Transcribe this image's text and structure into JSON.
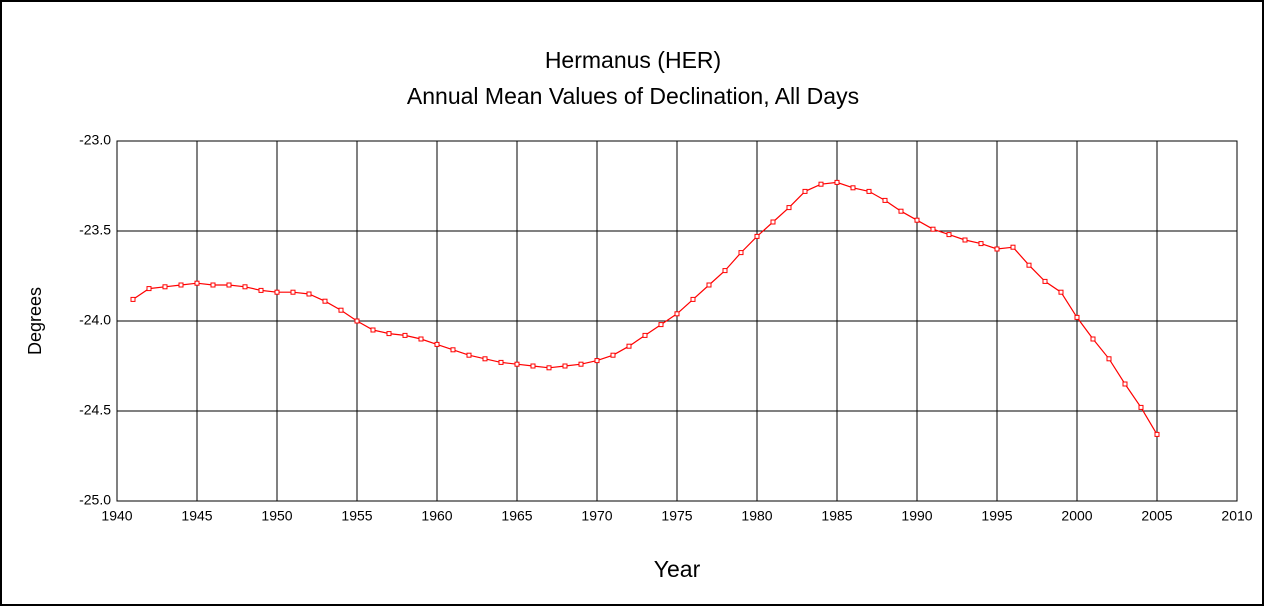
{
  "chart_data": {
    "type": "line",
    "title": "Hermanus (HER)",
    "subtitle": "Annual Mean Values of Declination, All Days",
    "x_label": "Year",
    "y_label": "Degrees",
    "x": [
      1941,
      1942,
      1943,
      1944,
      1945,
      1946,
      1947,
      1948,
      1949,
      1950,
      1951,
      1952,
      1953,
      1954,
      1955,
      1956,
      1957,
      1958,
      1959,
      1960,
      1961,
      1962,
      1963,
      1964,
      1965,
      1966,
      1967,
      1968,
      1969,
      1970,
      1971,
      1972,
      1973,
      1974,
      1975,
      1976,
      1977,
      1978,
      1979,
      1980,
      1981,
      1982,
      1983,
      1984,
      1985,
      1986,
      1987,
      1988,
      1989,
      1990,
      1991,
      1992,
      1993,
      1994,
      1995,
      1996,
      1997,
      1998,
      1999,
      2000,
      2001,
      2002,
      2003,
      2004,
      2005
    ],
    "series": [
      {
        "color": "#ff0000",
        "values": [
          -23.88,
          -23.82,
          -23.81,
          -23.8,
          -23.79,
          -23.8,
          -23.8,
          -23.81,
          -23.83,
          -23.84,
          -23.84,
          -23.85,
          -23.89,
          -23.94,
          -24.0,
          -24.05,
          -24.07,
          -24.08,
          -24.1,
          -24.13,
          -24.16,
          -24.19,
          -24.21,
          -24.23,
          -24.24,
          -24.25,
          -24.26,
          -24.25,
          -24.24,
          -24.22,
          -24.19,
          -24.14,
          -24.08,
          -24.02,
          -23.96,
          -23.88,
          -23.8,
          -23.72,
          -23.62,
          -23.53,
          -23.45,
          -23.37,
          -23.28,
          -23.24,
          -23.23,
          -23.26,
          -23.28,
          -23.33,
          -23.39,
          -23.44,
          -23.49,
          -23.52,
          -23.55,
          -23.57,
          -23.6,
          -23.59,
          -23.69,
          -23.78,
          -23.84,
          -23.98,
          -24.1,
          -24.21,
          -24.35,
          -24.48,
          -24.63
        ]
      }
    ],
    "xlim": [
      1940,
      2010
    ],
    "xticks": [
      1940,
      1945,
      1950,
      1955,
      1960,
      1965,
      1970,
      1975,
      1980,
      1985,
      1990,
      1995,
      2000,
      2005,
      2010
    ],
    "ylim": [
      -25,
      -23
    ],
    "yticks": [
      {
        "value": -25,
        "label": "-25.0"
      },
      {
        "value": -24.5,
        "label": "-24.5"
      },
      {
        "value": -24,
        "label": "-24.0"
      },
      {
        "value": -23.5,
        "label": "-23.5"
      },
      {
        "value": -23,
        "label": "-23.0"
      }
    ],
    "grid": true
  }
}
